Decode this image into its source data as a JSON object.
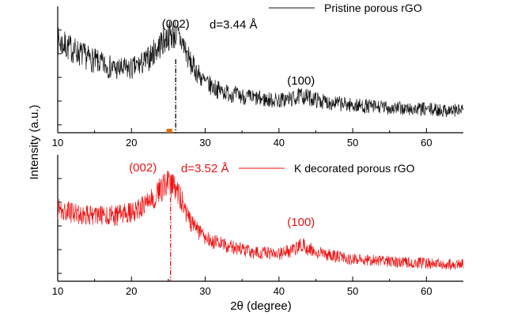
{
  "chart_data": [
    {
      "type": "line",
      "series": [
        {
          "name": "Pristine porous rGO",
          "color": "#111111",
          "x": [
            10,
            12,
            14,
            16,
            18,
            20,
            22,
            24,
            25,
            26,
            27,
            28,
            30,
            32,
            34,
            36,
            38,
            40,
            42,
            43,
            44,
            46,
            48,
            50,
            52,
            54,
            56,
            58,
            60,
            62,
            64,
            65
          ],
          "y": [
            0.8,
            0.72,
            0.64,
            0.57,
            0.52,
            0.52,
            0.6,
            0.78,
            0.86,
            0.88,
            0.78,
            0.58,
            0.38,
            0.3,
            0.26,
            0.23,
            0.21,
            0.2,
            0.22,
            0.25,
            0.23,
            0.19,
            0.17,
            0.15,
            0.14,
            0.13,
            0.12,
            0.11,
            0.11,
            0.1,
            0.1,
            0.1
          ]
        }
      ],
      "xlim": [
        10,
        65
      ],
      "x_ticks": [
        "10",
        "20",
        "30",
        "40",
        "50",
        "60"
      ],
      "annotations": [
        {
          "text": "(002)",
          "x": 26,
          "color": "#000000"
        },
        {
          "text": "d=3.44 Å",
          "color": "#000000"
        },
        {
          "text": "(100)",
          "x": 43,
          "color": "#000000"
        }
      ],
      "peak_line_x": 26.0,
      "legend": "top-right"
    },
    {
      "type": "line",
      "series": [
        {
          "name": "K decorated porous rGO",
          "color": "#ee1111",
          "x": [
            10,
            12,
            14,
            16,
            18,
            20,
            22,
            24,
            25,
            26,
            27,
            28,
            30,
            32,
            34,
            36,
            38,
            40,
            42,
            43,
            44,
            46,
            48,
            50,
            52,
            54,
            56,
            58,
            60,
            62,
            64,
            65
          ],
          "y": [
            0.6,
            0.57,
            0.55,
            0.54,
            0.54,
            0.57,
            0.65,
            0.8,
            0.86,
            0.82,
            0.65,
            0.48,
            0.32,
            0.26,
            0.22,
            0.19,
            0.17,
            0.16,
            0.2,
            0.26,
            0.21,
            0.16,
            0.13,
            0.11,
            0.1,
            0.09,
            0.08,
            0.07,
            0.07,
            0.06,
            0.06,
            0.06
          ]
        }
      ],
      "xlim": [
        10,
        65
      ],
      "x_ticks": [
        "10",
        "20",
        "30",
        "40",
        "50",
        "60"
      ],
      "annotations": [
        {
          "text": "(002)",
          "x": 25.3,
          "color": "#ee1111"
        },
        {
          "text": "d=3.52 Å",
          "color": "#ee1111"
        },
        {
          "text": "(100)",
          "x": 43,
          "color": "#ee1111"
        }
      ],
      "peak_line_x": 25.3,
      "legend": "top-right"
    }
  ],
  "axis": {
    "xlabel": "2θ (degree)",
    "ylabel": "Intensity (a.u.)"
  }
}
